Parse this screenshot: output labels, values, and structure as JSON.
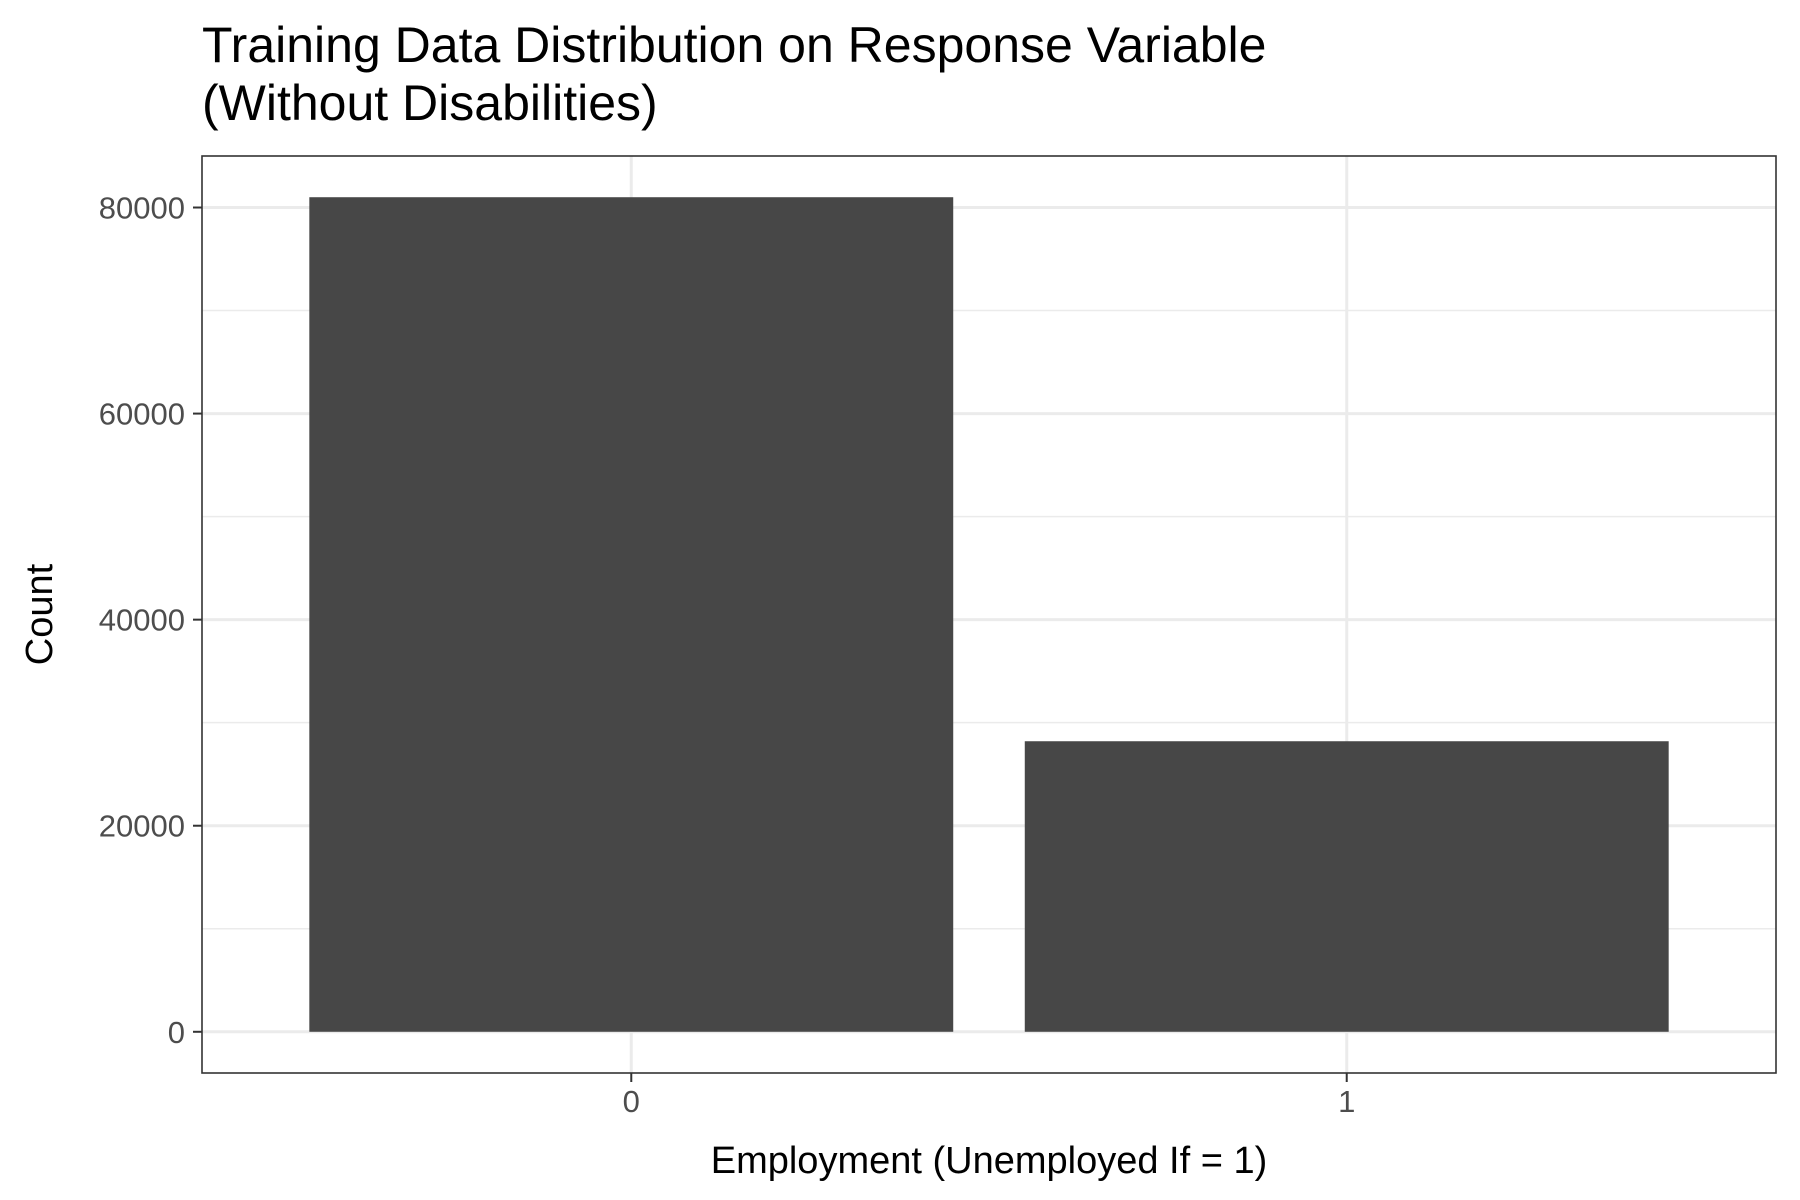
{
  "chart_data": {
    "type": "bar",
    "title": "Training Data Distribution on Response Variable",
    "subtitle": "(Without Disabilities)",
    "xlabel": "Employment (Unemployed If = 1)",
    "ylabel": "Count",
    "categories": [
      "0",
      "1"
    ],
    "values": [
      81000,
      28200
    ],
    "ylim": [
      -4000,
      85000
    ],
    "yticks": [
      0,
      20000,
      40000,
      60000,
      80000
    ],
    "ytick_labels": [
      "0",
      "20000",
      "40000",
      "60000",
      "80000"
    ],
    "grid": true,
    "bar_color": "#474747",
    "legend": "none"
  }
}
